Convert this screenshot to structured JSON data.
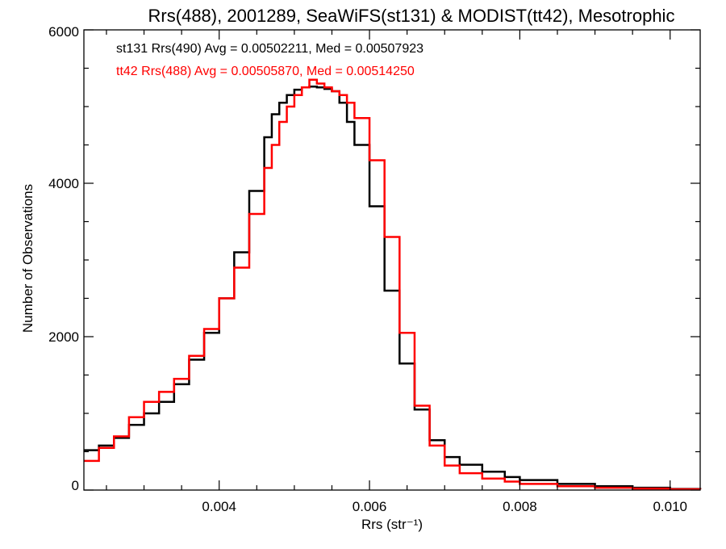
{
  "chart_data": {
    "type": "line",
    "title": "Rrs(488), 2001289, SeaWiFS(st131) & MODIST(tt42), Mesotrophic",
    "xlabel": "Rrs (str⁻¹)",
    "ylabel": "Number of Observations",
    "xlim": [
      0.0022,
      0.0104
    ],
    "ylim": [
      0,
      6000
    ],
    "xticks": [
      {
        "value": 0.004,
        "label": "0.004"
      },
      {
        "value": 0.006,
        "label": "0.006"
      },
      {
        "value": 0.008,
        "label": "0.008"
      },
      {
        "value": 0.01,
        "label": "0.010"
      }
    ],
    "yticks": [
      {
        "value": 0,
        "label": "0"
      },
      {
        "value": 2000,
        "label": "2000"
      },
      {
        "value": 4000,
        "label": "4000"
      },
      {
        "value": 6000,
        "label": "6000"
      }
    ],
    "grid": false,
    "annotations": [
      {
        "text": "st131 Rrs(490) Avg = 0.00502211, Med = 0.00507923",
        "color": "#000000"
      },
      {
        "text": "tt42 Rrs(488) Avg = 0.00505870, Med = 0.00514250",
        "color": "#ff0000"
      }
    ],
    "series": [
      {
        "color": "#000000",
        "x": [
          0.0022,
          0.0024,
          0.0026,
          0.0028,
          0.003,
          0.0032,
          0.0034,
          0.0036,
          0.0038,
          0.004,
          0.0042,
          0.0044,
          0.0046,
          0.0047,
          0.0048,
          0.0049,
          0.005,
          0.0051,
          0.0052,
          0.0053,
          0.0054,
          0.0055,
          0.0056,
          0.0057,
          0.0058,
          0.006,
          0.0062,
          0.0064,
          0.0066,
          0.0068,
          0.007,
          0.0072,
          0.0075,
          0.0078,
          0.008,
          0.0085,
          0.009,
          0.0095,
          0.01,
          0.0104
        ],
        "y": [
          520,
          580,
          680,
          850,
          1000,
          1150,
          1380,
          1700,
          2050,
          2500,
          3100,
          3900,
          4600,
          4900,
          5050,
          5150,
          5220,
          5250,
          5260,
          5250,
          5230,
          5200,
          5050,
          4800,
          4500,
          3700,
          2600,
          1650,
          1050,
          650,
          430,
          330,
          240,
          170,
          130,
          80,
          50,
          30,
          15,
          10
        ]
      },
      {
        "color": "#ff0000",
        "x": [
          0.0022,
          0.0024,
          0.0026,
          0.0028,
          0.003,
          0.0032,
          0.0034,
          0.0036,
          0.0038,
          0.004,
          0.0042,
          0.0044,
          0.0046,
          0.0047,
          0.0048,
          0.0049,
          0.005,
          0.0051,
          0.0052,
          0.0053,
          0.0054,
          0.0055,
          0.0056,
          0.0057,
          0.0058,
          0.006,
          0.0062,
          0.0064,
          0.0066,
          0.0068,
          0.007,
          0.0072,
          0.0075,
          0.0078,
          0.008,
          0.0085,
          0.009,
          0.0095,
          0.01,
          0.0104
        ],
        "y": [
          380,
          550,
          700,
          950,
          1150,
          1280,
          1450,
          1750,
          2100,
          2500,
          2900,
          3600,
          4200,
          4500,
          4800,
          5000,
          5150,
          5250,
          5350,
          5300,
          5250,
          5200,
          5150,
          5050,
          4850,
          4300,
          3300,
          2050,
          1100,
          580,
          320,
          220,
          150,
          110,
          80,
          50,
          30,
          20,
          10,
          8
        ]
      }
    ]
  }
}
